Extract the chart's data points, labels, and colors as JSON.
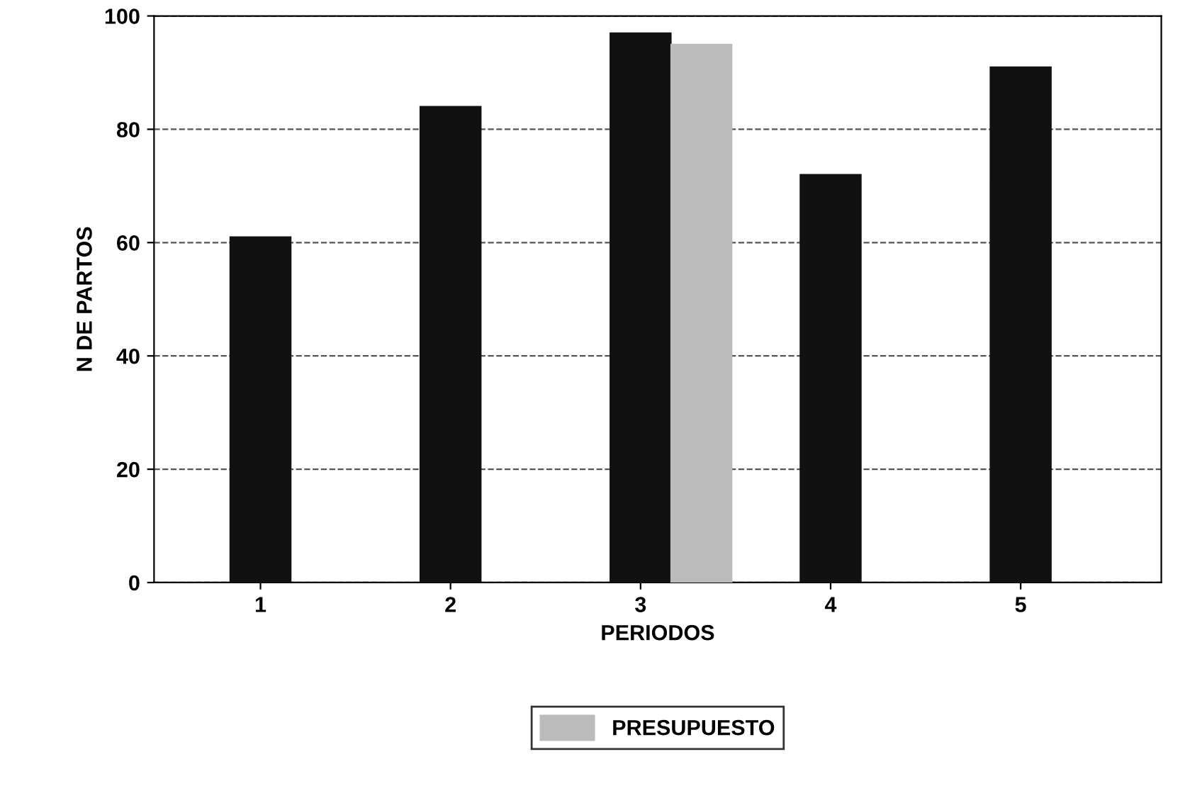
{
  "chart_data": {
    "type": "bar",
    "xlabel": "PERIODOS",
    "ylabel": "N DE PARTOS",
    "categories": [
      "1",
      "2",
      "3",
      "4",
      "5"
    ],
    "series": [
      {
        "color": "#111111",
        "values": [
          61,
          84,
          97,
          72,
          91
        ]
      },
      {
        "name": "PRESUPUESTO",
        "color": "#bbbbbb",
        "values": [
          null,
          null,
          95,
          null,
          null
        ]
      }
    ],
    "ylim": [
      0,
      100
    ],
    "yticks": [
      0,
      20,
      40,
      60,
      80,
      100
    ],
    "grid": "y",
    "legend": "bottom"
  }
}
